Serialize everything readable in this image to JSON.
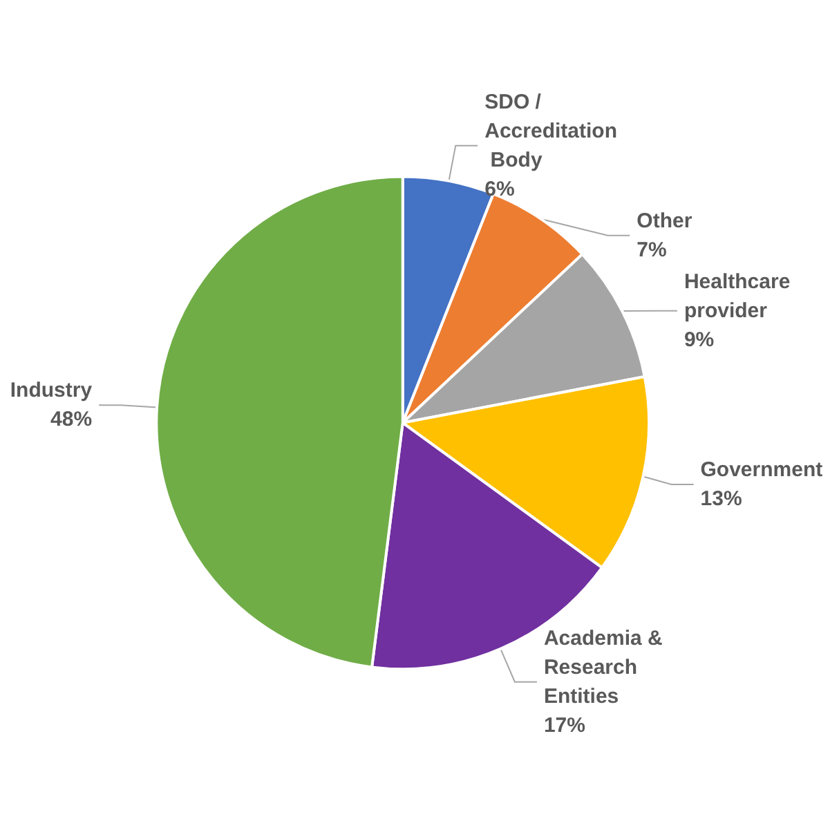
{
  "chart_data": {
    "type": "pie",
    "categories": [
      "SDO / Accreditation Body",
      "Other",
      "Healthcare provider",
      "Government",
      "Academia & Research Entities",
      "Industry"
    ],
    "values": [
      6,
      7,
      9,
      13,
      17,
      48
    ],
    "value_labels": [
      "6%",
      "7%",
      "9%",
      "13%",
      "17%",
      "48%"
    ],
    "colors": [
      "#4472c4",
      "#ed7d31",
      "#a5a5a5",
      "#ffc000",
      "#7030a0",
      "#70ad47"
    ],
    "legend": false
  }
}
